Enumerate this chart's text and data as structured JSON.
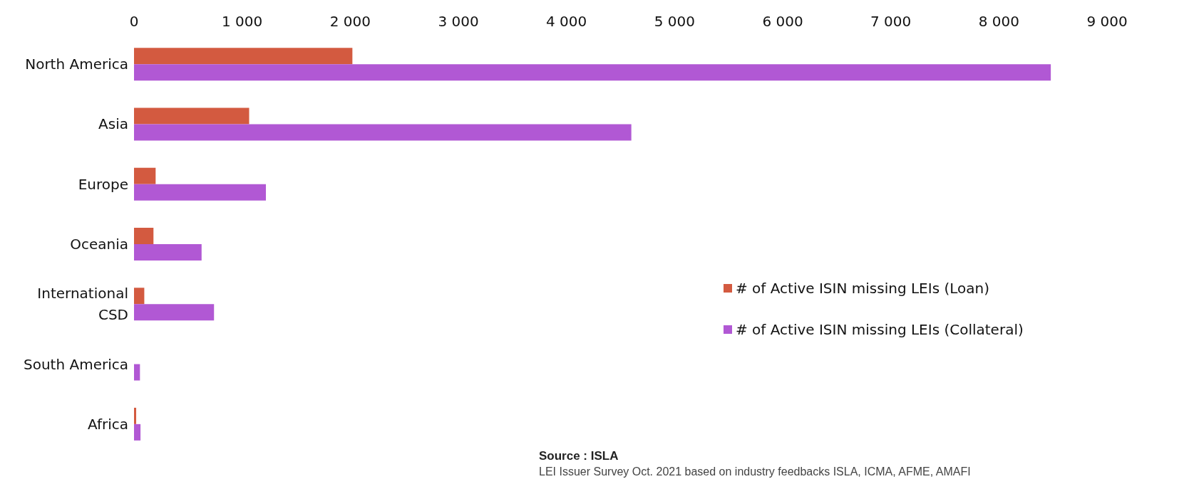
{
  "chart_data": {
    "type": "bar",
    "orientation": "horizontal",
    "categories": [
      "North America",
      "Asia",
      "Europe",
      "Oceania",
      "International\nCSD",
      "South America",
      "Africa"
    ],
    "series": [
      {
        "name": "# of Active ISIN missing LEIs (Loan)",
        "color": "#d35a40",
        "values": [
          2020,
          1065,
          200,
          180,
          95,
          0,
          20
        ]
      },
      {
        "name": "# of Active ISIN missing LEIs (Collateral)",
        "color": "#b158d4",
        "values": [
          8480,
          4600,
          1220,
          625,
          740,
          55,
          60
        ]
      }
    ],
    "xlim": [
      0,
      9000
    ],
    "xticks": [
      {
        "value": 0,
        "label": "0"
      },
      {
        "value": 1000,
        "label": "1 000"
      },
      {
        "value": 2000,
        "label": "2 000"
      },
      {
        "value": 3000,
        "label": "3 000"
      },
      {
        "value": 4000,
        "label": "4 000"
      },
      {
        "value": 5000,
        "label": "5 000"
      },
      {
        "value": 6000,
        "label": "6 000"
      },
      {
        "value": 7000,
        "label": "7 000"
      },
      {
        "value": 8000,
        "label": "8 000"
      },
      {
        "value": 9000,
        "label": "9 000"
      }
    ],
    "grid": false,
    "legend": "right",
    "annotations": [
      "Source : ISLA",
      "LEI Issuer Survey Oct. 2021 based on industry feedbacks ISLA, ICMA, AFME, AMAFI"
    ]
  }
}
